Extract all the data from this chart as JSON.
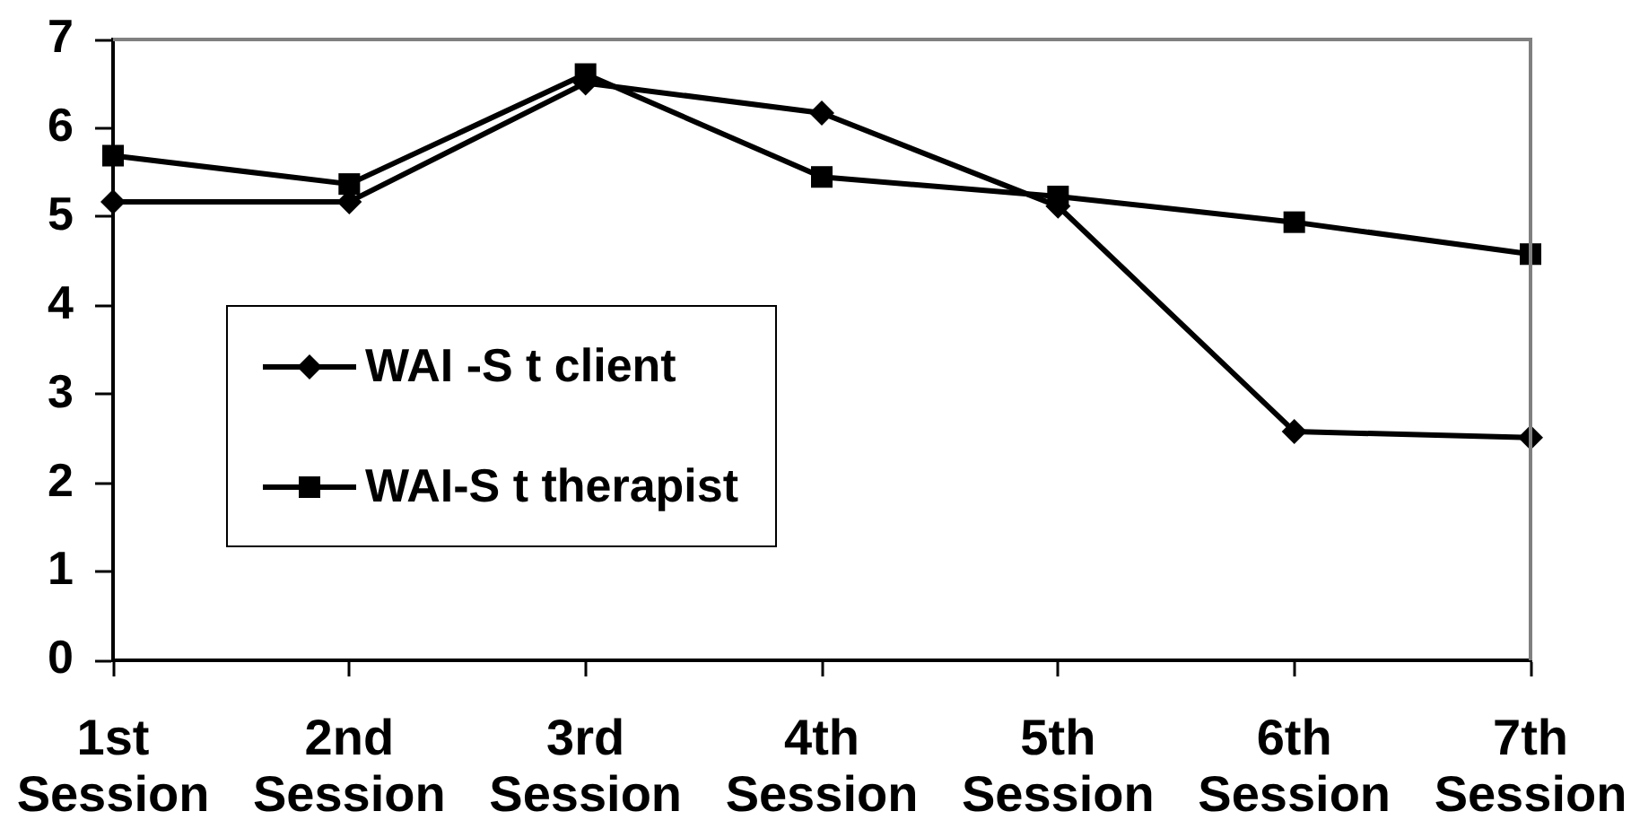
{
  "chart_data": {
    "type": "line",
    "categories": [
      "1st Session",
      "2nd Session",
      "3rd Session",
      "4th Session",
      "5th Session",
      "6th Session",
      "7th Session"
    ],
    "series": [
      {
        "name": "WAI -S t client",
        "color": "#000000",
        "marker": "diamond",
        "values": [
          5.17,
          5.17,
          6.51,
          6.17,
          5.12,
          2.58,
          2.51
        ]
      },
      {
        "name": "WAI-S t therapist",
        "color": "#000000",
        "marker": "square",
        "values": [
          5.69,
          5.37,
          6.61,
          5.45,
          5.23,
          4.94,
          4.58
        ]
      }
    ],
    "ylim": [
      0,
      7
    ],
    "yticks": [
      0,
      1,
      2,
      3,
      4,
      5,
      6,
      7
    ],
    "grid": false,
    "legend": "left",
    "line_style": "solid"
  }
}
